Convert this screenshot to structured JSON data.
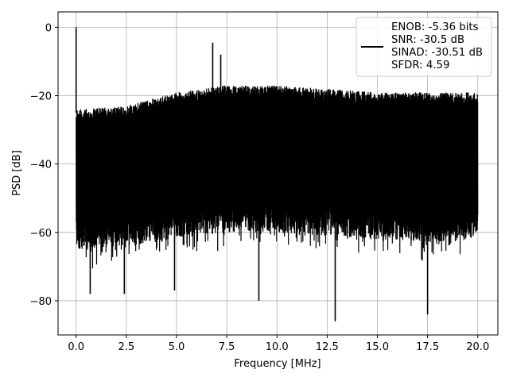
{
  "chart_data": {
    "type": "line",
    "title": "",
    "xlabel": "Frequency [MHz]",
    "ylabel": "PSD [dB]",
    "xlim": [
      -0.9,
      21.0
    ],
    "ylim": [
      -90,
      4.5
    ],
    "xticks": [
      0.0,
      2.5,
      5.0,
      7.5,
      10.0,
      12.5,
      15.0,
      17.5,
      20.0
    ],
    "xtick_labels": [
      "0.0",
      "2.5",
      "5.0",
      "7.5",
      "10.0",
      "12.5",
      "15.0",
      "17.5",
      "20.0"
    ],
    "yticks": [
      0,
      -20,
      -40,
      -60,
      -80
    ],
    "ytick_labels": [
      "0",
      "−20",
      "−40",
      "−60",
      "−80"
    ],
    "grid": true,
    "legend_position": "top-right",
    "legend_lines": [
      "ENOB: -5.36 bits",
      "SNR: -30.5 dB",
      "SINAD: -30.51 dB",
      "SFDR: 4.59"
    ],
    "series": [
      {
        "color": "#000000",
        "x_range": [
          0.0,
          20.0
        ],
        "envelope_upper": [
          [
            0.0,
            -24
          ],
          [
            2.5,
            -23
          ],
          [
            5.0,
            -19
          ],
          [
            7.5,
            -17
          ],
          [
            10.0,
            -17
          ],
          [
            12.5,
            -18
          ],
          [
            15.0,
            -19
          ],
          [
            17.5,
            -19
          ],
          [
            20.0,
            -19
          ]
        ],
        "envelope_lower": [
          [
            0.0,
            -65
          ],
          [
            2.5,
            -64
          ],
          [
            5.0,
            -62
          ],
          [
            7.5,
            -60
          ],
          [
            10.0,
            -60
          ],
          [
            12.5,
            -61
          ],
          [
            15.0,
            -62
          ],
          [
            17.5,
            -63
          ],
          [
            20.0,
            -62
          ]
        ],
        "peaks": [
          [
            0.0,
            0.0
          ],
          [
            6.8,
            -4.5
          ],
          [
            7.2,
            -8
          ]
        ],
        "dips": [
          [
            0.7,
            -78
          ],
          [
            2.4,
            -78
          ],
          [
            4.9,
            -77
          ],
          [
            9.1,
            -80
          ],
          [
            12.9,
            -86
          ],
          [
            17.5,
            -84
          ]
        ]
      }
    ]
  }
}
